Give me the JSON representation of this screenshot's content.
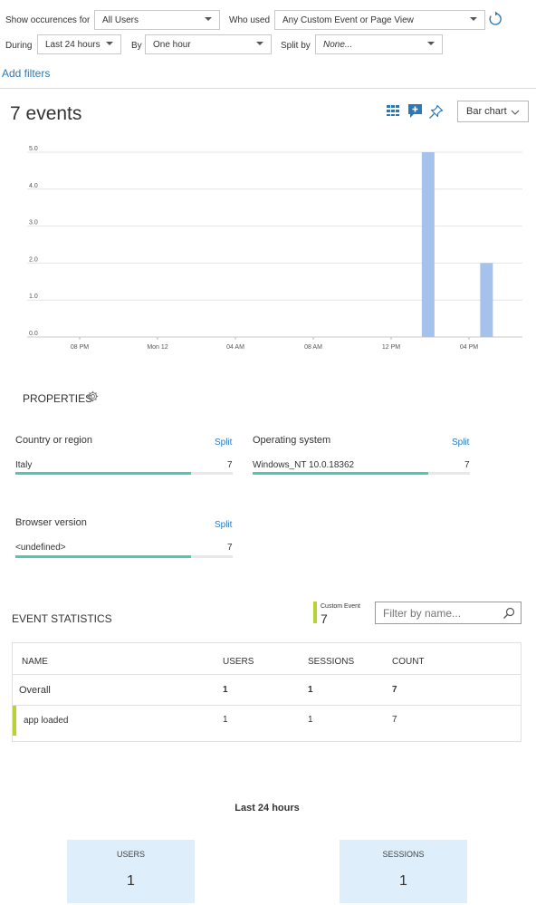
{
  "filters": {
    "show_occurrences_label": "Show occurences for",
    "users_value": "All Users",
    "who_used_label": "Who used",
    "event_value": "Any Custom Event or Page View",
    "during_label": "During",
    "during_value": "Last 24 hours",
    "by_label": "By",
    "by_value": "One hour",
    "split_by_label": "Split by",
    "split_by_value": "None...",
    "add_filters": "Add filters"
  },
  "summary": {
    "title": "7 events",
    "chart_type_button": "Bar chart"
  },
  "chart_data": {
    "type": "bar",
    "ylim": [
      0,
      5
    ],
    "y_ticks": [
      "0.0",
      "1.0",
      "2.0",
      "3.0",
      "4.0",
      "5.0"
    ],
    "x_ticks": [
      "08 PM",
      "Mon 12",
      "04 AM",
      "08 AM",
      "12 PM",
      "04 PM"
    ],
    "categories": [
      "02 PM",
      "05 PM"
    ],
    "values": [
      5,
      2
    ],
    "grid": true,
    "color": "#a4c2ec"
  },
  "properties": {
    "heading": "PROPERTIES",
    "cards": [
      {
        "title": "Country or region",
        "split": "Split",
        "value": "Italy",
        "count": "7",
        "fraction": 1.0
      },
      {
        "title": "Operating system",
        "split": "Split",
        "value": "Windows_NT 10.0.18362",
        "count": "7",
        "fraction": 1.0
      },
      {
        "title": "Browser version",
        "split": "Split",
        "value": "<undefined>",
        "count": "7",
        "fraction": 1.0
      }
    ]
  },
  "event_statistics": {
    "heading": "EVENT STATISTICS",
    "legend_label": "Custom Event",
    "legend_value": "7",
    "legend_color": "#b5d334",
    "filter_placeholder": "Filter by name...",
    "columns": [
      "NAME",
      "USERS",
      "SESSIONS",
      "COUNT"
    ],
    "rows": [
      {
        "name": "Overall",
        "users": "1",
        "sessions": "1",
        "count": "7"
      },
      {
        "name": "app loaded",
        "users": "1",
        "sessions": "1",
        "count": "7"
      }
    ]
  },
  "period": {
    "title": "Last 24 hours",
    "users_label": "USERS",
    "users_value": "1",
    "sessions_label": "SESSIONS",
    "sessions_value": "1"
  },
  "colors": {
    "accent": "#2a7ab9",
    "bar": "#a4c2ec",
    "property_bar": "#4ec9b0",
    "tile": "#deeefa"
  }
}
